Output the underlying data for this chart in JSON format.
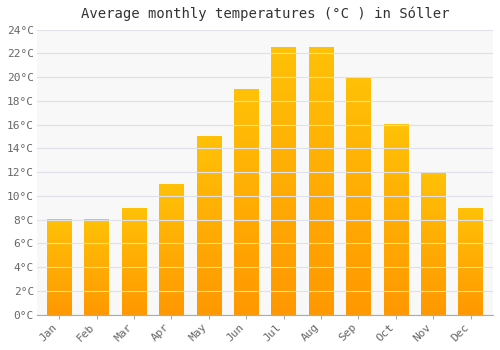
{
  "title": "Average monthly temperatures (°C ) in Sóller",
  "months": [
    "Jan",
    "Feb",
    "Mar",
    "Apr",
    "May",
    "Jun",
    "Jul",
    "Aug",
    "Sep",
    "Oct",
    "Nov",
    "Dec"
  ],
  "values": [
    8.0,
    8.0,
    9.0,
    11.0,
    15.0,
    19.0,
    22.5,
    22.5,
    20.0,
    16.0,
    12.0,
    9.0
  ],
  "bar_color_top": "#FFC107",
  "bar_color_bottom": "#FF9800",
  "ylim": [
    0,
    24
  ],
  "ytick_step": 2,
  "background_color": "#FFFFFF",
  "plot_bg_color": "#F8F8F8",
  "grid_color": "#E0E0E8",
  "title_fontsize": 10,
  "tick_fontsize": 8,
  "axis_label_color": "#666666",
  "spine_color": "#AAAAAA"
}
